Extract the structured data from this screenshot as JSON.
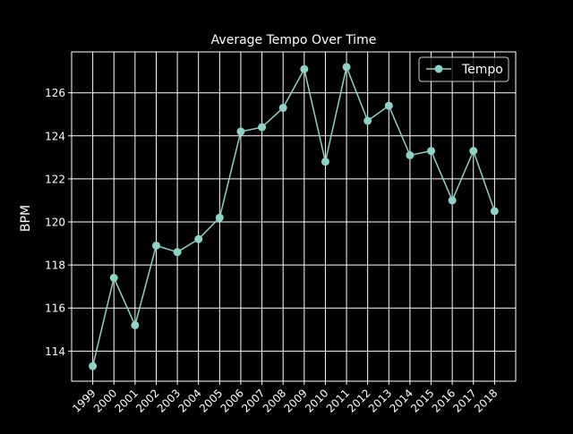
{
  "colors": {
    "background": "#000000",
    "foreground": "#ffffff",
    "grid": "#ffffff",
    "series": "#8dd3c7"
  },
  "chart_data": {
    "type": "line",
    "title": "Average Tempo Over Time",
    "xlabel": "",
    "ylabel": "BPM",
    "grid": true,
    "legend_position": "top-right",
    "x": [
      "1999",
      "2000",
      "2001",
      "2002",
      "2003",
      "2004",
      "2005",
      "2006",
      "2007",
      "2008",
      "2009",
      "2010",
      "2011",
      "2012",
      "2013",
      "2014",
      "2015",
      "2016",
      "2017",
      "2018"
    ],
    "series": [
      {
        "name": "Tempo",
        "marker": "circle",
        "values": [
          113.3,
          117.4,
          115.2,
          118.9,
          118.6,
          119.2,
          120.2,
          124.2,
          124.4,
          125.3,
          127.1,
          122.8,
          127.2,
          124.7,
          125.4,
          123.1,
          123.3,
          121.0,
          123.3,
          120.5
        ]
      }
    ],
    "xlim": [
      1998.0,
      2019.0
    ],
    "ylim": [
      112.6,
      127.9
    ],
    "yticks": [
      114,
      116,
      118,
      120,
      122,
      124,
      126
    ]
  }
}
